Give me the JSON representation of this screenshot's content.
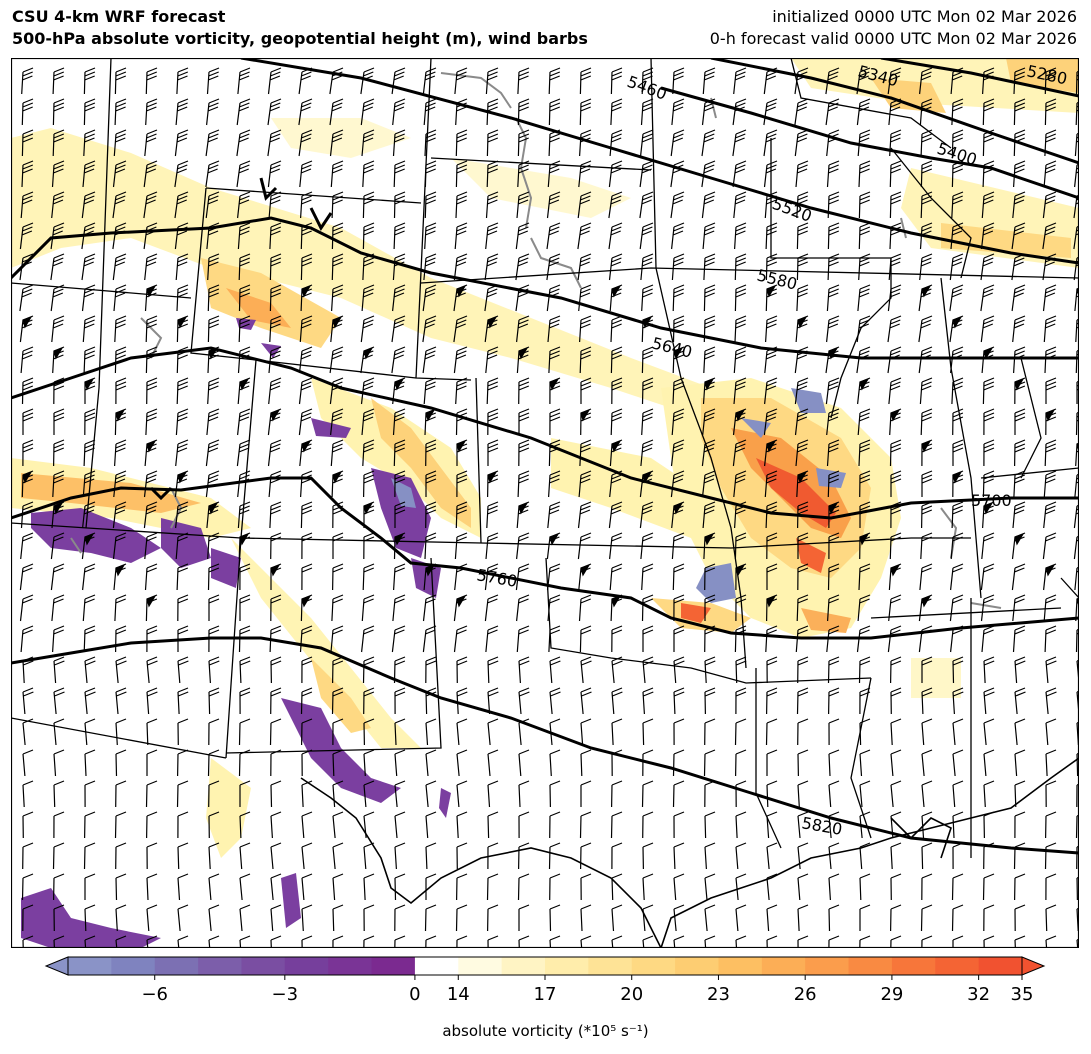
{
  "header": {
    "title_line1": "CSU 4-km WRF forecast",
    "title_line2": "500-hPa absolute vorticity, geopotential height (m), wind barbs",
    "init_line": "initialized 0000 UTC Mon 02 Mar 2026",
    "valid_line": "0-h forecast valid 0000 UTC Mon 02 Mar 2026"
  },
  "map": {
    "fields": [
      "absolute vorticity",
      "geopotential height (m)",
      "wind barbs"
    ],
    "contour_labels": [
      "5280",
      "5340",
      "5400",
      "5460",
      "5520",
      "5580",
      "5640",
      "5700",
      "5760",
      "5820"
    ],
    "features": [
      {
        "kind": "negative vorticity",
        "colors": [
          "#7b3fa0",
          "#8690c4"
        ]
      },
      {
        "kind": "positive vorticity",
        "colors": [
          "#fff3b0",
          "#fdd27a",
          "#f9a04a",
          "#f05a30"
        ]
      }
    ]
  },
  "colorbar": {
    "label": "absolute vorticity (*10⁵ s⁻¹)",
    "ticks": [
      "−6",
      "−3",
      "0",
      "14",
      "17",
      "20",
      "23",
      "26",
      "29",
      "32",
      "35"
    ],
    "colors": [
      "#8a93c7",
      "#7f83bf",
      "#7c70b3",
      "#7c5eaa",
      "#7a4ea2",
      "#763f9c",
      "#7a3496",
      "#7b2a90",
      "#ffffff",
      "#fffbe1",
      "#fff4c4",
      "#ffedab",
      "#fee396",
      "#fed983",
      "#fdcd72",
      "#fdbf62",
      "#fcae56",
      "#fb9d4c",
      "#f98a42",
      "#f7763a",
      "#f46434",
      "#f15230"
    ]
  }
}
